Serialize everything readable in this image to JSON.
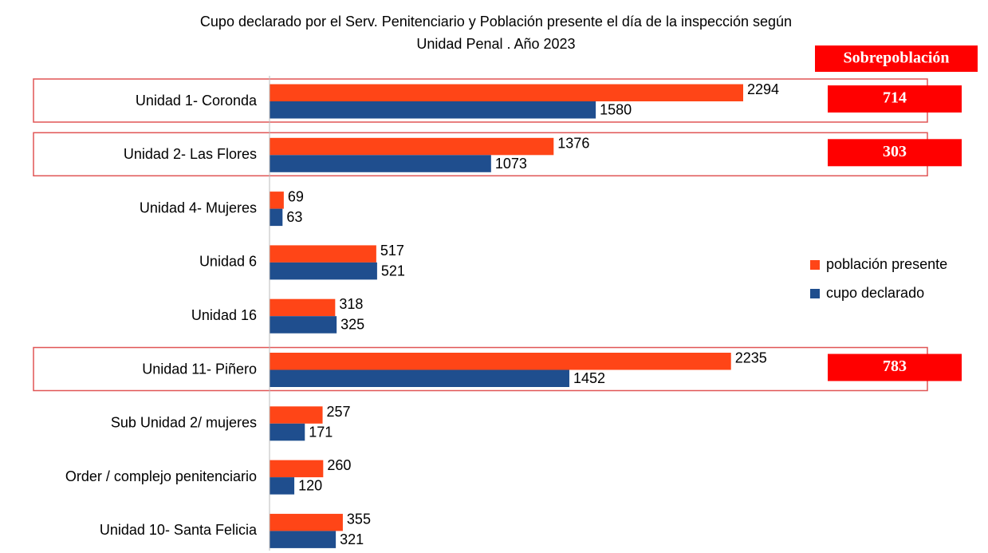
{
  "chart_data": {
    "type": "barh",
    "title": [
      "Cupo declarado por el Serv. Penitenciario y Población presente el día de la inspección según",
      "Unidad Penal . Año 2023"
    ],
    "categories": [
      "Unidad 1- Coronda",
      "Unidad 2- Las Flores",
      "Unidad 4- Mujeres",
      "Unidad 6",
      "Unidad 16",
      "Unidad 11- Piñero",
      "Sub Unidad 2/ mujeres",
      "Order / complejo penitenciario",
      "Unidad 10- Santa Felicia"
    ],
    "series": [
      {
        "name": "población presente",
        "color": "#ff4517",
        "values": [
          2294,
          1376,
          69,
          517,
          318,
          2235,
          257,
          260,
          355
        ]
      },
      {
        "name": "cupo declarado",
        "color": "#1f4e8e",
        "values": [
          1580,
          1073,
          63,
          521,
          325,
          1452,
          171,
          120,
          321
        ]
      }
    ],
    "overpopulation": {
      "label": "Sobrepoblación",
      "color": "#ff0000",
      "values": [
        714,
        303,
        null,
        null,
        null,
        783,
        null,
        null,
        null
      ]
    },
    "legend": "right"
  }
}
